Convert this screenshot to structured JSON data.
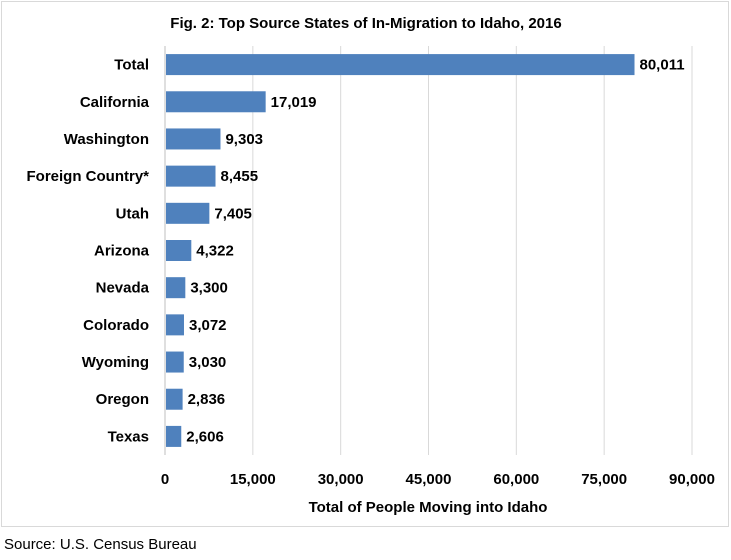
{
  "chart_data": {
    "type": "bar",
    "orientation": "horizontal",
    "title": "Fig. 2: Top Source States of In-Migration to Idaho, 2016",
    "xlabel": "Total of People Moving into Idaho",
    "ylabel": "",
    "categories": [
      "Total",
      "California",
      "Washington",
      "Foreign Country*",
      "Utah",
      "Arizona",
      "Nevada",
      "Colorado",
      "Wyoming",
      "Oregon",
      "Texas"
    ],
    "values": [
      80011,
      17019,
      9303,
      8455,
      7405,
      4322,
      3300,
      3072,
      3030,
      2836,
      2606
    ],
    "value_labels": [
      "80,011",
      "17,019",
      "9,303",
      "8,455",
      "7,405",
      "4,322",
      "3,300",
      "3,072",
      "3,030",
      "2,836",
      "2,606"
    ],
    "xlim": [
      0,
      90000
    ],
    "xticks": [
      0,
      15000,
      30000,
      45000,
      60000,
      75000,
      90000
    ],
    "xtick_labels": [
      "0",
      "15,000",
      "30,000",
      "45,000",
      "60,000",
      "75,000",
      "90,000"
    ],
    "grid": "vertical",
    "bar_color": "#4f81bd",
    "grid_color": "#d9d9d9"
  },
  "source": "Source: U.S. Census Bureau"
}
